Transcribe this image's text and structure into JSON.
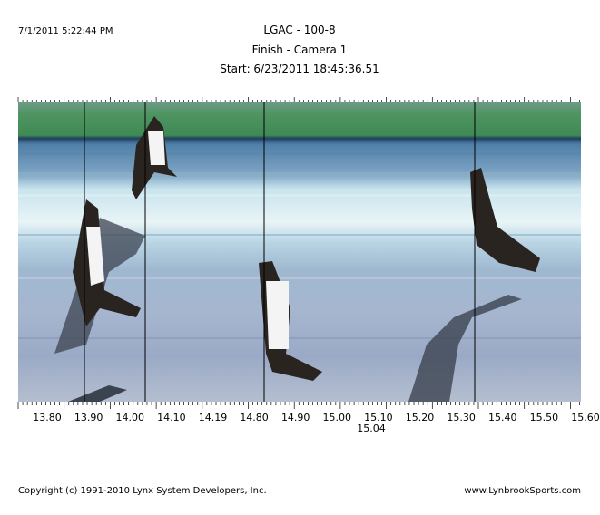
{
  "header": {
    "timestamp": "7/1/2011 5:22:44 PM",
    "title": "LGAC - 100-8",
    "camera": "Finish - Camera 1",
    "start": "Start: 6/23/2011 18:45:36.51"
  },
  "time_axis": {
    "labels": [
      "13.80",
      "13.90",
      "14.00",
      "14.10",
      "14.19",
      "14.80",
      "14.90",
      "15.00",
      "15.10",
      "15.20",
      "15.30",
      "15.40",
      "15.50",
      "15.60"
    ],
    "cursor_label": "15.04"
  },
  "footer": {
    "copyright": "Copyright (c) 1991-2010 Lynx System Developers, Inc.",
    "website": "www.LynbrookSports.com"
  }
}
